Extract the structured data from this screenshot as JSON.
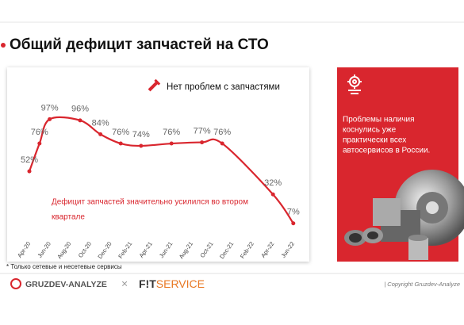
{
  "header": {
    "title": "Общий дефицит запчастей на СТО"
  },
  "chart_data": {
    "type": "line",
    "title": "Нет проблем с запчастями",
    "categories": [
      "Apr-20",
      "Jun-20",
      "Aug-20",
      "Oct-20",
      "Dec-20",
      "Feb-21",
      "Apr-21",
      "Jun-21",
      "Aug-21",
      "Oct-21",
      "Dec-21",
      "Feb-22",
      "Apr-22",
      "Jun-22"
    ],
    "series": [
      {
        "color": "#d9262e",
        "x": [
          0,
          0.5,
          1,
          2.5,
          3.5,
          4.5,
          5.5,
          7,
          8.5,
          9.5,
          12,
          13
        ],
        "values": [
          52,
          76,
          97,
          96,
          84,
          76,
          74,
          76,
          77,
          76,
          32,
          7
        ],
        "value_labels": [
          "52%",
          "76%",
          "97%",
          "96%",
          "84%",
          "76%",
          "74%",
          "76%",
          "77%",
          "76%",
          "32%",
          "7%"
        ]
      }
    ],
    "ylim": [
      0,
      100
    ],
    "annotations": [
      "Дефицит запчастей значительно усилился во втором",
      "квартале"
    ]
  },
  "side_panel": {
    "text": [
      "Проблемы наличия",
      "коснулись уже",
      "практически всех",
      "автосервисов в России."
    ]
  },
  "footnote": "* Только сетевые и несетевые сервисы",
  "footer": {
    "logo_left": "GRUZDEV-ANALYZE",
    "separator": "×",
    "logo_right_a": "F!T",
    "logo_right_b": "SERVICE",
    "copyright": "| Copyright Gruzdev-Analyze"
  }
}
